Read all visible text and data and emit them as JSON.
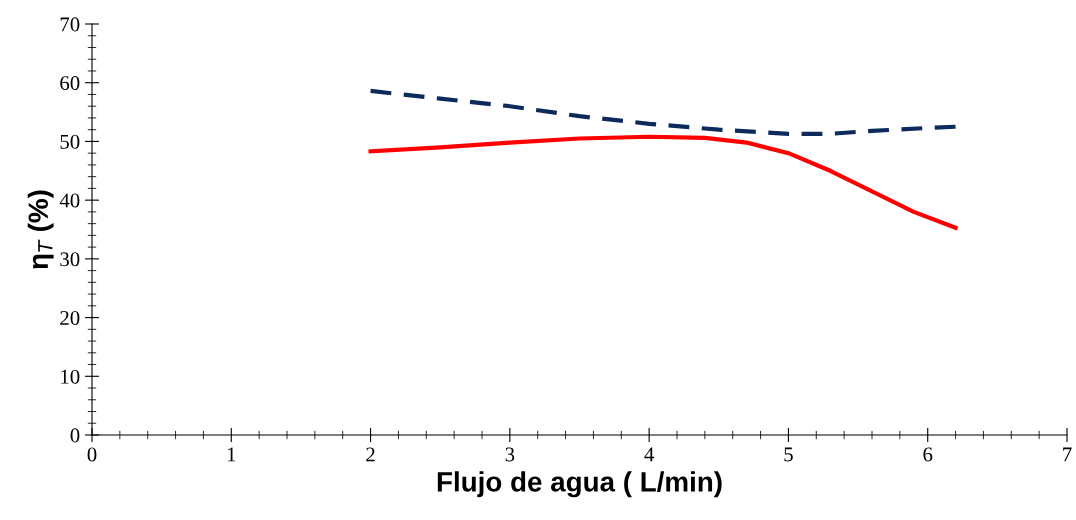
{
  "chart_data": {
    "type": "line",
    "xlabel": "Flujo de agua ( L/min)",
    "ylabel": "η$_{T}$ (%)",
    "xlim": [
      0,
      7
    ],
    "xticks": [
      0,
      1,
      2,
      3,
      4,
      5,
      6,
      7
    ],
    "ylim": [
      0,
      70
    ],
    "yticks": [
      0,
      10,
      20,
      30,
      40,
      50,
      60,
      70
    ],
    "grid": false,
    "legend": false,
    "marker": "none",
    "series": [
      {
        "color": "#ff0000",
        "line_style": "solid",
        "x": [
          2,
          2.5,
          3,
          3.5,
          4,
          4.4,
          4.7,
          5,
          5.3,
          5.6,
          5.9,
          6.2
        ],
        "values": [
          48.3,
          49,
          49.8,
          50.5,
          50.8,
          50.6,
          49.8,
          48,
          45,
          41.5,
          38,
          35.3
        ]
      },
      {
        "color": "#0d2a5c",
        "line_style": "dashed",
        "x": [
          2,
          2.5,
          3,
          3.5,
          4,
          4.5,
          5,
          5.3,
          5.6,
          6,
          6.2
        ],
        "values": [
          58.6,
          57.3,
          56,
          54.3,
          53,
          52,
          51.3,
          51.3,
          51.8,
          52.3,
          52.5
        ]
      }
    ]
  }
}
